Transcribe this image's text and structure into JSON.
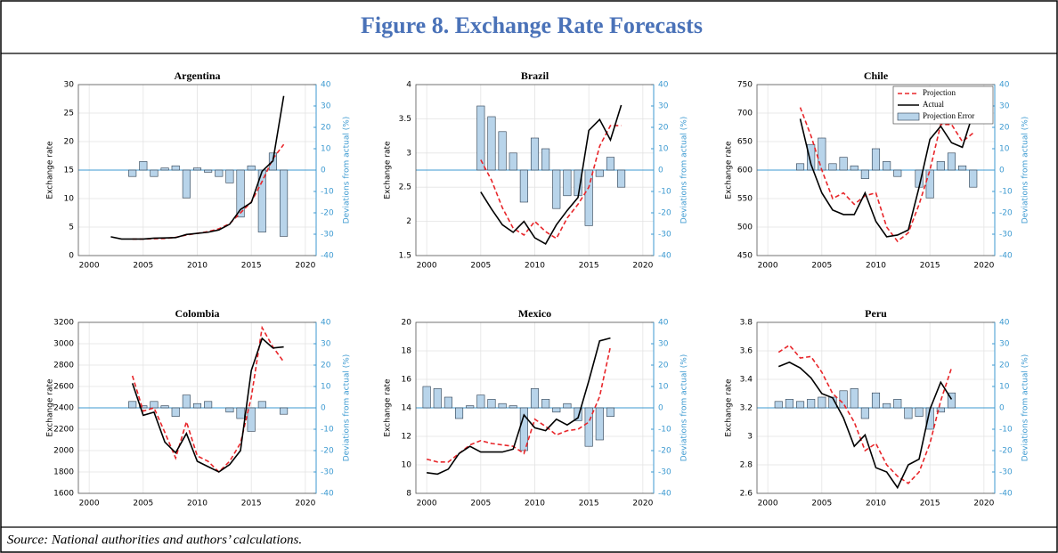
{
  "title": "Figure 8. Exchange Rate Forecasts",
  "source": "Source:  National authorities and authors’ calculations.",
  "chart_data": [
    {
      "type": "combo",
      "title": "Argentina",
      "ylabel": "Exchange rate",
      "y2label": "Deviations from actual (%)",
      "xlim": [
        1999,
        2021
      ],
      "xticks": [
        2000,
        2005,
        2010,
        2015,
        2020
      ],
      "ylim": [
        0,
        30
      ],
      "yticks": [
        0,
        5,
        10,
        15,
        20,
        25,
        30
      ],
      "y2lim": [
        -40,
        40
      ],
      "y2ticks": [
        -40,
        -30,
        -20,
        -10,
        0,
        10,
        20,
        30,
        40
      ],
      "grid": true,
      "series": [
        {
          "color": "#e8262a",
          "linestyle": "dashed",
          "x": [
            2004,
            2005,
            2006,
            2007,
            2008,
            2009,
            2010,
            2011,
            2012,
            2013,
            2014,
            2015,
            2016,
            2017,
            2018
          ],
          "values": [
            2.9,
            2.9,
            2.95,
            3.0,
            3.2,
            3.6,
            3.9,
            4.2,
            4.7,
            5.6,
            7.5,
            9.4,
            13,
            17,
            19.5
          ]
        },
        {
          "color": "#000000",
          "linestyle": "solid",
          "x": [
            2002,
            2003,
            2004,
            2005,
            2006,
            2007,
            2008,
            2009,
            2010,
            2011,
            2012,
            2013,
            2014,
            2015,
            2016,
            2017,
            2018
          ],
          "values": [
            3.3,
            2.9,
            2.9,
            2.9,
            3.05,
            3.1,
            3.15,
            3.7,
            3.9,
            4.1,
            4.5,
            5.5,
            8.1,
            9.3,
            14.8,
            16.6,
            28
          ]
        },
        {
          "type": "bar",
          "axis": "y2",
          "color": "#b8d4ea",
          "x": [
            2004,
            2005,
            2006,
            2007,
            2008,
            2009,
            2010,
            2011,
            2012,
            2013,
            2014,
            2015,
            2016,
            2017,
            2018
          ],
          "values": [
            -3,
            4,
            -3,
            1,
            2,
            -13,
            1,
            -1,
            -3,
            -6,
            -22,
            2,
            -29,
            8,
            -31
          ]
        }
      ]
    },
    {
      "type": "combo",
      "title": "Brazil",
      "ylabel": "Exchange rate",
      "y2label": "Deviations from actual (%)",
      "xlim": [
        1999,
        2021
      ],
      "xticks": [
        2000,
        2005,
        2010,
        2015,
        2020
      ],
      "ylim": [
        1.5,
        4
      ],
      "yticks": [
        1.5,
        2,
        2.5,
        3,
        3.5,
        4
      ],
      "y2lim": [
        -40,
        40
      ],
      "y2ticks": [
        -40,
        -30,
        -20,
        -10,
        0,
        10,
        20,
        30,
        40
      ],
      "grid": true,
      "series": [
        {
          "color": "#e8262a",
          "linestyle": "dashed",
          "x": [
            2005,
            2006,
            2007,
            2008,
            2009,
            2010,
            2011,
            2012,
            2013,
            2014,
            2015,
            2016,
            2017,
            2018
          ],
          "values": [
            2.9,
            2.6,
            2.2,
            1.9,
            1.8,
            2.0,
            1.85,
            1.75,
            2.05,
            2.25,
            2.5,
            3.1,
            3.4,
            3.4
          ]
        },
        {
          "color": "#000000",
          "linestyle": "solid",
          "x": [
            2005,
            2006,
            2007,
            2008,
            2009,
            2010,
            2011,
            2012,
            2013,
            2014,
            2015,
            2016,
            2017,
            2018
          ],
          "values": [
            2.43,
            2.18,
            1.95,
            1.84,
            2.0,
            1.76,
            1.67,
            1.95,
            2.16,
            2.35,
            3.33,
            3.49,
            3.19,
            3.7
          ]
        },
        {
          "type": "bar",
          "axis": "y2",
          "color": "#b8d4ea",
          "x": [
            2005,
            2006,
            2007,
            2008,
            2009,
            2010,
            2011,
            2012,
            2013,
            2014,
            2015,
            2016,
            2017,
            2018
          ],
          "values": [
            30,
            25,
            18,
            8,
            -15,
            15,
            10,
            -18,
            -12,
            -12,
            -26,
            -3,
            6,
            -8
          ]
        }
      ]
    },
    {
      "type": "combo",
      "title": "Chile",
      "ylabel": "Exchange rate",
      "y2label": "Deviations from actual (%)",
      "xlim": [
        1999,
        2021
      ],
      "xticks": [
        2000,
        2005,
        2010,
        2015,
        2020
      ],
      "ylim": [
        450,
        750
      ],
      "yticks": [
        450,
        500,
        550,
        600,
        650,
        700,
        750
      ],
      "y2lim": [
        -40,
        40
      ],
      "y2ticks": [
        -40,
        -30,
        -20,
        -10,
        0,
        10,
        20,
        30,
        40
      ],
      "grid": true,
      "legend": "upper right",
      "series": [
        {
          "name": "Projection",
          "color": "#e8262a",
          "linestyle": "dashed",
          "x": [
            2003,
            2004,
            2005,
            2006,
            2007,
            2008,
            2009,
            2010,
            2011,
            2012,
            2013,
            2014,
            2015,
            2016,
            2017,
            2018,
            2019
          ],
          "values": [
            710,
            660,
            600,
            550,
            560,
            540,
            555,
            560,
            500,
            475,
            490,
            540,
            600,
            680,
            680,
            650,
            665
          ]
        },
        {
          "name": "Actual",
          "color": "#000000",
          "linestyle": "solid",
          "x": [
            2003,
            2004,
            2005,
            2006,
            2007,
            2008,
            2009,
            2010,
            2011,
            2012,
            2013,
            2014,
            2015,
            2016,
            2017,
            2018,
            2019
          ],
          "values": [
            690,
            610,
            560,
            530,
            522,
            522,
            560,
            510,
            483,
            486,
            495,
            570,
            654,
            677,
            648,
            640,
            700
          ]
        },
        {
          "name": "Projection Error",
          "type": "bar",
          "axis": "y2",
          "color": "#b8d4ea",
          "x": [
            2003,
            2004,
            2005,
            2006,
            2007,
            2008,
            2009,
            2010,
            2011,
            2012,
            2013,
            2014,
            2015,
            2016,
            2017,
            2018,
            2019
          ],
          "values": [
            3,
            12,
            15,
            3,
            6,
            2,
            -4,
            10,
            4,
            -3,
            0,
            -8,
            -13,
            4,
            8,
            2,
            -8
          ]
        }
      ]
    },
    {
      "type": "combo",
      "title": "Colombia",
      "ylabel": "Exchange rate",
      "y2label": "Deviations from actual (%)",
      "xlim": [
        1999,
        2021
      ],
      "xticks": [
        2000,
        2005,
        2010,
        2015,
        2020
      ],
      "ylim": [
        1600,
        3200
      ],
      "yticks": [
        1600,
        1800,
        2000,
        2200,
        2400,
        2600,
        2800,
        3000,
        3200
      ],
      "y2lim": [
        -40,
        40
      ],
      "y2ticks": [
        -40,
        -30,
        -20,
        -10,
        0,
        10,
        20,
        30,
        40
      ],
      "grid": true,
      "series": [
        {
          "color": "#e8262a",
          "linestyle": "dashed",
          "x": [
            2004,
            2005,
            2006,
            2007,
            2008,
            2009,
            2010,
            2011,
            2012,
            2013,
            2014,
            2015,
            2016,
            2017,
            2018
          ],
          "values": [
            2700,
            2370,
            2400,
            2170,
            1930,
            2270,
            1950,
            1900,
            1800,
            1900,
            2070,
            2500,
            3150,
            2970,
            2830
          ]
        },
        {
          "color": "#000000",
          "linestyle": "solid",
          "x": [
            2004,
            2005,
            2006,
            2007,
            2008,
            2009,
            2010,
            2011,
            2012,
            2013,
            2014,
            2015,
            2016,
            2017,
            2018
          ],
          "values": [
            2630,
            2330,
            2360,
            2080,
            1980,
            2160,
            1900,
            1850,
            1800,
            1870,
            2000,
            2750,
            3050,
            2960,
            2970
          ]
        },
        {
          "type": "bar",
          "axis": "y2",
          "color": "#b8d4ea",
          "x": [
            2004,
            2005,
            2006,
            2007,
            2008,
            2009,
            2010,
            2011,
            2012,
            2013,
            2014,
            2015,
            2016,
            2017,
            2018
          ],
          "values": [
            3,
            1,
            3,
            1,
            -4,
            6,
            2,
            3,
            0,
            -2,
            -5,
            -11,
            3,
            0,
            -3
          ]
        }
      ]
    },
    {
      "type": "combo",
      "title": "Mexico",
      "ylabel": "Exchange rate",
      "y2label": "Deviations from actual (%)",
      "xlim": [
        1999,
        2021
      ],
      "xticks": [
        2000,
        2005,
        2010,
        2015,
        2020
      ],
      "ylim": [
        8,
        20
      ],
      "yticks": [
        8,
        10,
        12,
        14,
        16,
        18,
        20
      ],
      "y2lim": [
        -40,
        40
      ],
      "y2ticks": [
        -40,
        -30,
        -20,
        -10,
        0,
        10,
        20,
        30,
        40
      ],
      "grid": true,
      "series": [
        {
          "color": "#e8262a",
          "linestyle": "dashed",
          "x": [
            2000,
            2001,
            2002,
            2003,
            2004,
            2005,
            2006,
            2007,
            2008,
            2009,
            2010,
            2011,
            2012,
            2013,
            2014,
            2015,
            2016,
            2017
          ],
          "values": [
            10.4,
            10.2,
            10.2,
            10.8,
            11.4,
            11.7,
            11.5,
            11.4,
            11.3,
            10.8,
            13.2,
            12.7,
            12.1,
            12.4,
            12.5,
            13.0,
            14.8,
            18.3
          ]
        },
        {
          "color": "#000000",
          "linestyle": "solid",
          "x": [
            2000,
            2001,
            2002,
            2003,
            2004,
            2005,
            2006,
            2007,
            2008,
            2009,
            2010,
            2011,
            2012,
            2013,
            2014,
            2015,
            2016,
            2017
          ],
          "values": [
            9.45,
            9.35,
            9.7,
            10.8,
            11.3,
            10.9,
            10.9,
            10.9,
            11.1,
            13.5,
            12.6,
            12.4,
            13.2,
            12.8,
            13.3,
            15.9,
            18.7,
            18.9
          ]
        },
        {
          "type": "bar",
          "axis": "y2",
          "color": "#b8d4ea",
          "x": [
            2000,
            2001,
            2002,
            2003,
            2004,
            2005,
            2006,
            2007,
            2008,
            2009,
            2010,
            2011,
            2012,
            2013,
            2014,
            2015,
            2016,
            2017
          ],
          "values": [
            10,
            9,
            5,
            -5,
            1,
            6,
            4,
            2,
            1,
            -20,
            9,
            4,
            -2,
            2,
            -6,
            -18,
            -15,
            -4
          ]
        }
      ]
    },
    {
      "type": "combo",
      "title": "Peru",
      "ylabel": "Exchange rate",
      "y2label": "Deviations from actual (%)",
      "xlim": [
        1999,
        2021
      ],
      "xticks": [
        2000,
        2005,
        2010,
        2015,
        2020
      ],
      "ylim": [
        2.6,
        3.8
      ],
      "yticks": [
        2.6,
        2.8,
        3,
        3.2,
        3.4,
        3.6,
        3.8
      ],
      "y2lim": [
        -40,
        40
      ],
      "y2ticks": [
        -40,
        -30,
        -20,
        -10,
        0,
        10,
        20,
        30,
        40
      ],
      "grid": true,
      "series": [
        {
          "color": "#e8262a",
          "linestyle": "dashed",
          "x": [
            2001,
            2002,
            2003,
            2004,
            2005,
            2006,
            2007,
            2008,
            2009,
            2010,
            2011,
            2012,
            2013,
            2014,
            2015,
            2016,
            2017
          ],
          "values": [
            3.59,
            3.64,
            3.55,
            3.56,
            3.45,
            3.3,
            3.23,
            3.1,
            2.9,
            2.95,
            2.8,
            2.72,
            2.67,
            2.75,
            2.95,
            3.25,
            3.48
          ]
        },
        {
          "color": "#000000",
          "linestyle": "solid",
          "x": [
            2001,
            2002,
            2003,
            2004,
            2005,
            2006,
            2007,
            2008,
            2009,
            2010,
            2011,
            2012,
            2013,
            2014,
            2015,
            2016,
            2017
          ],
          "values": [
            3.49,
            3.52,
            3.48,
            3.41,
            3.3,
            3.27,
            3.13,
            2.93,
            3.01,
            2.78,
            2.75,
            2.64,
            2.8,
            2.84,
            3.19,
            3.38,
            3.26
          ]
        },
        {
          "type": "bar",
          "axis": "y2",
          "color": "#b8d4ea",
          "x": [
            2001,
            2002,
            2003,
            2004,
            2005,
            2006,
            2007,
            2008,
            2009,
            2010,
            2011,
            2012,
            2013,
            2014,
            2015,
            2016,
            2017
          ],
          "values": [
            3,
            4,
            3,
            4,
            5,
            5,
            8,
            9,
            -5,
            7,
            2,
            4,
            -5,
            -4,
            -10,
            -2,
            7
          ]
        }
      ]
    }
  ]
}
